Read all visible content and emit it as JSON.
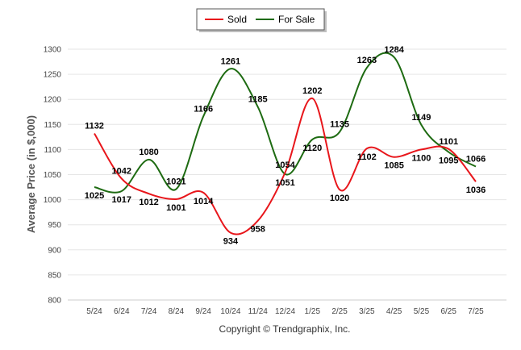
{
  "chart_data": {
    "type": "line",
    "categories": [
      "5/24",
      "6/24",
      "7/24",
      "8/24",
      "9/24",
      "10/24",
      "11/24",
      "12/24",
      "1/25",
      "2/25",
      "3/25",
      "4/25",
      "5/25",
      "6/25",
      "7/25"
    ],
    "series": [
      {
        "name": "Sold",
        "color": "#e8161b",
        "values": [
          1132,
          1042,
          1012,
          1001,
          1014,
          934,
          958,
          1054,
          1202,
          1020,
          1102,
          1085,
          1100,
          1101,
          1036
        ]
      },
      {
        "name": "For Sale",
        "color": "#1e6b12",
        "values": [
          1025,
          1017,
          1080,
          1021,
          1166,
          1261,
          1185,
          1051,
          1120,
          1135,
          1263,
          1284,
          1149,
          1095,
          1066
        ]
      }
    ],
    "title": "",
    "xlabel": "",
    "ylabel": "Average Price (in $,000)",
    "ylim": [
      800,
      1300
    ],
    "yticks": [
      800,
      850,
      900,
      950,
      1000,
      1050,
      1100,
      1150,
      1200,
      1250,
      1300
    ],
    "grid": true,
    "legend": "top-center"
  },
  "footer": {
    "copyright": "Copyright © Trendgraphix, Inc."
  }
}
